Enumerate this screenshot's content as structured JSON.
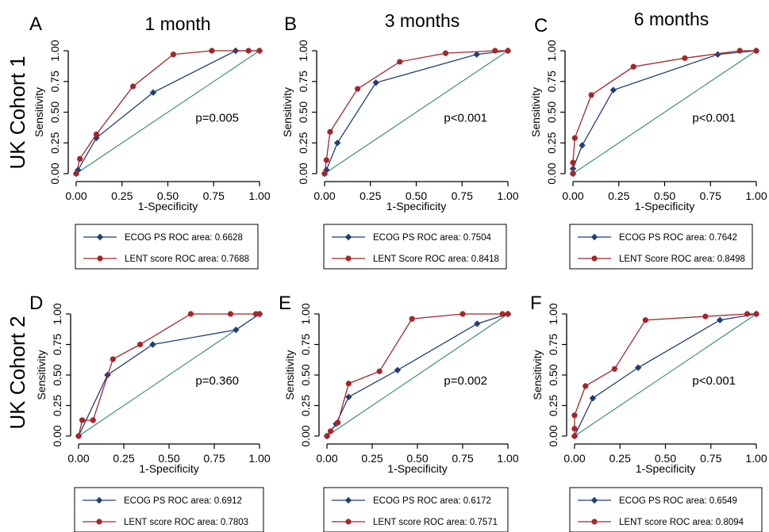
{
  "figure": {
    "row_labels": [
      "UK Cohort 1",
      "UK Cohort 2"
    ],
    "colors": {
      "ecog": "#1f3f78",
      "lent": "#a5262a",
      "reference": "#2e8b73",
      "axis": "#000000"
    },
    "marker_icons": {
      "ecog": "diamond-marker-icon",
      "lent": "circle-marker-icon"
    }
  },
  "chart_data": [
    {
      "type": "line",
      "panel": "A",
      "title": "1 month",
      "xlabel": "1-Specificity",
      "ylabel": "Sensitivity",
      "xlim": [
        0,
        1
      ],
      "ylim": [
        0,
        1
      ],
      "xticks": [
        "0.00",
        "0.25",
        "0.50",
        "0.75",
        "1.00"
      ],
      "yticks": [
        "0.00",
        "0.25",
        "0.50",
        "0.75",
        "1.00"
      ],
      "annotation": "p=0.005",
      "legend_placement": "below",
      "series": [
        {
          "name": "ECOG PS ROC area: 0.6628",
          "x": [
            0,
            0.01,
            0.11,
            0.42,
            0.87,
            1.0
          ],
          "y": [
            0,
            0.03,
            0.29,
            0.66,
            1.0,
            1.0
          ]
        },
        {
          "name": "LENT score ROC area: 0.7688",
          "x": [
            0,
            0.02,
            0.11,
            0.31,
            0.53,
            0.74,
            0.94,
            1.0
          ],
          "y": [
            0,
            0.12,
            0.32,
            0.71,
            0.97,
            1.0,
            1.0,
            1.0
          ]
        },
        {
          "x": [
            0,
            1
          ],
          "y": [
            0,
            1
          ]
        }
      ]
    },
    {
      "type": "line",
      "panel": "B",
      "title": "3 months",
      "xlabel": "1-Specificity",
      "ylabel": "Sensitivity",
      "xlim": [
        0,
        1
      ],
      "ylim": [
        0,
        1
      ],
      "xticks": [
        "0.00",
        "0.25",
        "0.50",
        "0.75",
        "1.00"
      ],
      "yticks": [
        "0.00",
        "0.25",
        "0.50",
        "0.75",
        "1.00"
      ],
      "annotation": "p<0.001",
      "legend_placement": "below",
      "series": [
        {
          "name": "ECOG PS ROC area: 0.7504",
          "x": [
            0,
            0.01,
            0.07,
            0.28,
            0.83,
            1.0
          ],
          "y": [
            0,
            0.03,
            0.25,
            0.74,
            0.97,
            1.0
          ]
        },
        {
          "name": "LENT Score ROC area: 0.8418",
          "x": [
            0,
            0.01,
            0.03,
            0.18,
            0.41,
            0.66,
            0.93,
            1.0
          ],
          "y": [
            0,
            0.11,
            0.34,
            0.69,
            0.91,
            0.98,
            1.0,
            1.0
          ]
        },
        {
          "x": [
            0,
            1
          ],
          "y": [
            0,
            1
          ]
        }
      ]
    },
    {
      "type": "line",
      "panel": "C",
      "title": "6 months",
      "xlabel": "1-Specificity",
      "ylabel": "Sensitivity",
      "xlim": [
        0,
        1
      ],
      "ylim": [
        0,
        1
      ],
      "xticks": [
        "0.00",
        "0.25",
        "0.50",
        "0.75",
        "1.00"
      ],
      "yticks": [
        "0.00",
        "0.25",
        "0.50",
        "0.75",
        "1.00"
      ],
      "annotation": "p<0.001",
      "legend_placement": "below",
      "series": [
        {
          "name": "ECOG PS ROC area: 0.7642",
          "x": [
            0,
            0.0,
            0.05,
            0.22,
            0.79,
            1.0
          ],
          "y": [
            0,
            0.04,
            0.23,
            0.68,
            0.97,
            1.0
          ]
        },
        {
          "name": "LENT Score ROC area: 0.8498",
          "x": [
            0,
            0.0,
            0.01,
            0.1,
            0.33,
            0.61,
            0.91,
            1.0
          ],
          "y": [
            0,
            0.09,
            0.29,
            0.64,
            0.87,
            0.94,
            1.0,
            1.0
          ]
        },
        {
          "x": [
            0,
            1
          ],
          "y": [
            0,
            1
          ]
        }
      ]
    },
    {
      "type": "line",
      "panel": "D",
      "title": "",
      "xlabel": "1-Specificity",
      "ylabel": "Sensitivity",
      "xlim": [
        0,
        1
      ],
      "ylim": [
        0,
        1
      ],
      "xticks": [
        "0.00",
        "0.25",
        "0.50",
        "0.75",
        "1.00"
      ],
      "yticks": [
        "0.00",
        "0.25",
        "0.50",
        "0.75",
        "1.00"
      ],
      "annotation": "p=0.360",
      "legend_placement": "below",
      "series": [
        {
          "name": "ECOG PS ROC area: 0.6912",
          "x": [
            0,
            0.16,
            0.41,
            0.87,
            1.0
          ],
          "y": [
            0,
            0.5,
            0.75,
            0.87,
            1.0
          ]
        },
        {
          "name": "LENT score ROC area: 0.7803",
          "x": [
            0,
            0.02,
            0.08,
            0.19,
            0.34,
            0.62,
            0.84,
            0.98,
            1.0
          ],
          "y": [
            0,
            0.13,
            0.13,
            0.63,
            0.75,
            1.0,
            1.0,
            1.0,
            1.0
          ]
        },
        {
          "x": [
            0,
            1
          ],
          "y": [
            0,
            1
          ]
        }
      ]
    },
    {
      "type": "line",
      "panel": "E",
      "title": "",
      "xlabel": "1-Specificity",
      "ylabel": "Sensitivity",
      "xlim": [
        0,
        1
      ],
      "ylim": [
        0,
        1
      ],
      "xticks": [
        "0.00",
        "0.25",
        "0.50",
        "0.75",
        "1.00"
      ],
      "yticks": [
        "0.00",
        "0.25",
        "0.50",
        "0.75",
        "1.00"
      ],
      "annotation": "p=0.002",
      "legend_placement": "below",
      "series": [
        {
          "name": "ECOG PS ROC area: 0.6172",
          "x": [
            0,
            0.05,
            0.12,
            0.39,
            0.83,
            1.0
          ],
          "y": [
            0,
            0.1,
            0.32,
            0.54,
            0.92,
            1.0
          ]
        },
        {
          "name": "LENT score ROC area: 0.7571",
          "x": [
            0,
            0.02,
            0.06,
            0.12,
            0.29,
            0.47,
            0.75,
            0.97,
            1.0
          ],
          "y": [
            0,
            0.04,
            0.11,
            0.43,
            0.53,
            0.96,
            1.0,
            1.0,
            1.0
          ]
        },
        {
          "x": [
            0,
            1
          ],
          "y": [
            0,
            1
          ]
        }
      ]
    },
    {
      "type": "line",
      "panel": "F",
      "title": "",
      "xlabel": "1-Specificity",
      "ylabel": "Sensitivity",
      "xlim": [
        0,
        1
      ],
      "ylim": [
        0,
        1
      ],
      "xticks": [
        "0.00",
        "0.25",
        "0.50",
        "0.75",
        "1.00"
      ],
      "yticks": [
        "0.00",
        "0.25",
        "0.50",
        "0.75",
        "1.00"
      ],
      "annotation": "p<0.001",
      "legend_placement": "below",
      "series": [
        {
          "name": "ECOG PS ROC area: 0.6549",
          "x": [
            0,
            0.1,
            0.35,
            0.8,
            1.0
          ],
          "y": [
            0,
            0.31,
            0.56,
            0.95,
            1.0
          ]
        },
        {
          "name": "LENT score ROC area: 0.8094",
          "x": [
            0,
            0.0,
            0.0,
            0.06,
            0.22,
            0.39,
            0.72,
            0.95,
            1.0
          ],
          "y": [
            0,
            0.06,
            0.17,
            0.41,
            0.55,
            0.95,
            0.98,
            1.0,
            1.0
          ]
        },
        {
          "x": [
            0,
            1
          ],
          "y": [
            0,
            1
          ]
        }
      ]
    }
  ]
}
